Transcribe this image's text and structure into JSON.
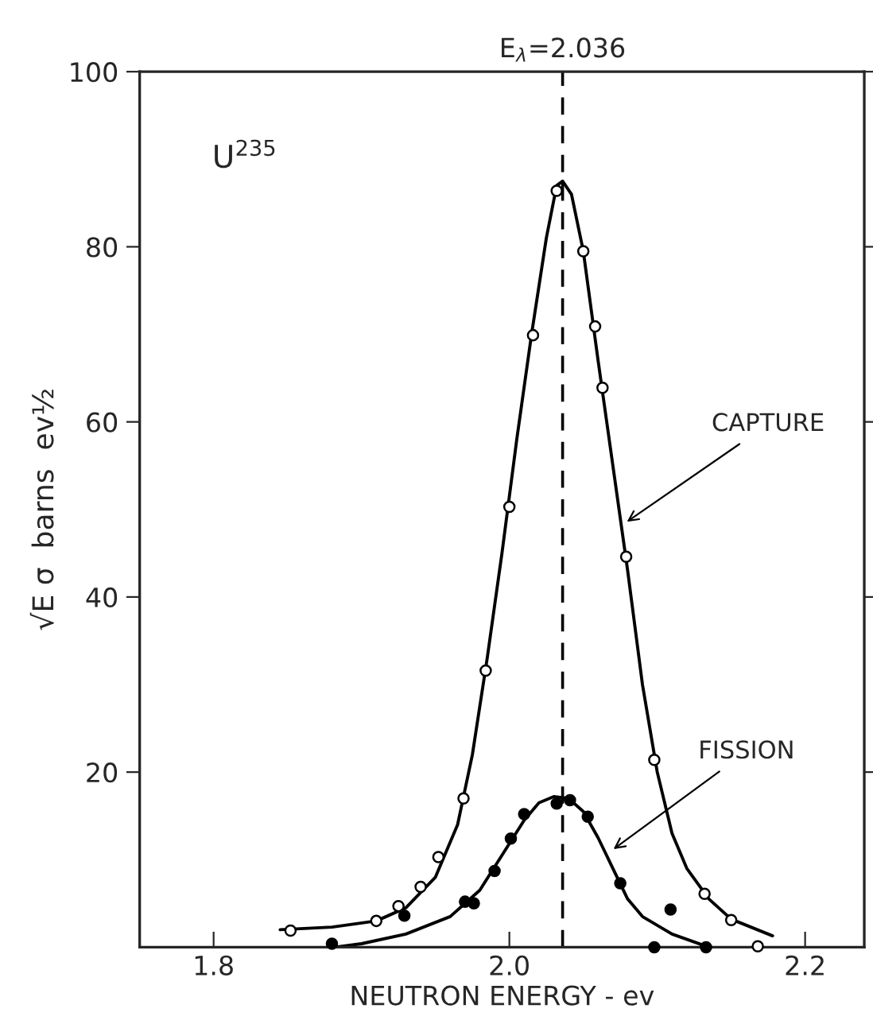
{
  "chart_data": {
    "type": "scatter",
    "xlabel": "NEUTRON ENERGY - ev",
    "ylabel": "√E σ  barns  ev½",
    "xlim": [
      1.75,
      2.24
    ],
    "ylim": [
      0,
      100
    ],
    "xticks": [
      {
        "value": 1.8,
        "label": "1.8"
      },
      {
        "value": 2.0,
        "label": "2.0"
      },
      {
        "value": 2.2,
        "label": "2.2"
      }
    ],
    "yticks": [
      20,
      40,
      60,
      80,
      100
    ],
    "grid": false,
    "legend": false,
    "series": [
      {
        "type": "line",
        "color": "#000000",
        "marker": "none",
        "x": [
          1.845,
          1.88,
          1.91,
          1.93,
          1.95,
          1.965,
          1.975,
          1.985,
          1.995,
          2.005,
          2.015,
          2.025,
          2.032,
          2.036,
          2.042,
          2.05,
          2.06,
          2.07,
          2.08,
          2.09,
          2.1,
          2.11,
          2.12,
          2.135,
          2.15,
          2.178
        ],
        "values": [
          2.0,
          2.3,
          3.0,
          4.5,
          8,
          14,
          22,
          33,
          45,
          58,
          70,
          81,
          87,
          87.5,
          86,
          79.5,
          67,
          55,
          43,
          30,
          20,
          13,
          9,
          5.5,
          3.2,
          1.3
        ]
      },
      {
        "color": "#ffffff",
        "marker": "circle",
        "x": [
          1.852,
          1.91,
          1.925,
          1.94,
          1.952,
          1.969,
          1.984,
          2.0,
          2.016,
          2.032,
          2.05,
          2.058,
          2.063,
          2.079,
          2.098,
          2.132,
          2.15,
          2.168
        ],
        "values": [
          1.9,
          3.0,
          4.7,
          6.9,
          10.3,
          17.0,
          31.6,
          50.3,
          69.9,
          86.4,
          79.5,
          70.9,
          63.9,
          44.6,
          21.4,
          6.1,
          3.1,
          0.1
        ]
      },
      {
        "type": "line",
        "color": "#000000",
        "marker": "none",
        "x": [
          1.882,
          1.9,
          1.93,
          1.96,
          1.98,
          1.995,
          2.01,
          2.02,
          2.03,
          2.04,
          2.05,
          2.06,
          2.07,
          2.08,
          2.09,
          2.11,
          2.13
        ],
        "values": [
          0,
          0.4,
          1.5,
          3.5,
          6.5,
          10.5,
          14.5,
          16.5,
          17.2,
          17,
          15.5,
          12.5,
          9,
          5.5,
          3.5,
          1.5,
          0.3
        ]
      },
      {
        "color": "#000000",
        "marker": "circle",
        "x": [
          1.88,
          1.929,
          1.97,
          1.976,
          1.99,
          2.001,
          2.01,
          2.032,
          2.041,
          2.053,
          2.075,
          2.098,
          2.109,
          2.133
        ],
        "values": [
          0.4,
          3.6,
          5.2,
          5.0,
          8.7,
          12.4,
          15.2,
          16.4,
          16.8,
          14.9,
          7.3,
          0,
          4.3,
          0
        ]
      }
    ],
    "ref_lines": [
      {
        "axis": "x",
        "value": 2.036,
        "label": "E$_{λ}$=2.036",
        "line_style": "dashed",
        "color": "#000000"
      }
    ],
    "annotations": [
      "U$^{235}$",
      {
        "text": "CAPTURE",
        "x": 2.077,
        "y": 48.3
      },
      {
        "text": "FISSION",
        "x": 2.068,
        "y": 10.9
      }
    ]
  }
}
